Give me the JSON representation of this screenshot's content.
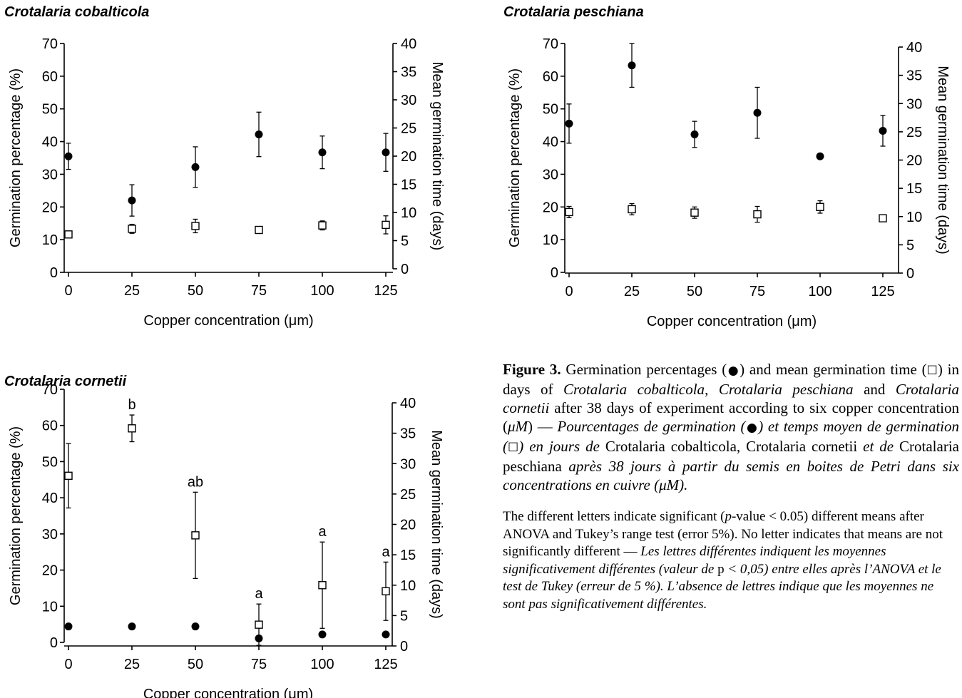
{
  "titles": {
    "cobalticola": "Crotalaria cobalticola",
    "peschiana": "Crotalaria peschiana",
    "cornetii": "Crotalaria cornetii"
  },
  "chart_data": [
    {
      "type": "scatter",
      "title": "Crotalaria cobalticola",
      "xlabel": "Copper concentration (μm)",
      "ylabel": "Germination percentage (%)",
      "y2label": "Mean germination time (days)",
      "x": [
        0,
        25,
        50,
        75,
        100,
        125
      ],
      "xlim": [
        0,
        125
      ],
      "ylim": [
        0,
        70
      ],
      "y2lim": [
        0,
        40
      ],
      "yticks": [
        0,
        10,
        20,
        30,
        40,
        50,
        60,
        70
      ],
      "y2ticks": [
        0,
        5,
        10,
        15,
        20,
        25,
        30,
        35,
        40
      ],
      "series": [
        {
          "marker": "filled-circle",
          "axis": "left",
          "values": [
            35.5,
            22,
            32.2,
            42.2,
            36.7,
            36.7
          ],
          "err": [
            4,
            4.8,
            6.2,
            6.8,
            5,
            5.8
          ]
        },
        {
          "marker": "open-square",
          "axis": "right",
          "values": [
            6.1,
            7.1,
            7.6,
            6.9,
            7.7,
            7.8
          ],
          "err": [
            0,
            0.8,
            1.2,
            0,
            0.8,
            1.6
          ]
        }
      ],
      "letters": []
    },
    {
      "type": "scatter",
      "title": "Crotalaria peschiana",
      "xlabel": "Copper concentration (μm)",
      "ylabel": "Germination percentage (%)",
      "y2label": "Mean germination time (days)",
      "x": [
        0,
        25,
        50,
        75,
        100,
        125
      ],
      "xlim": [
        0,
        125
      ],
      "ylim": [
        0,
        70
      ],
      "y2lim": [
        0,
        40
      ],
      "yticks": [
        0,
        10,
        20,
        30,
        40,
        50,
        60,
        70
      ],
      "y2ticks": [
        0,
        5,
        10,
        15,
        20,
        25,
        30,
        35,
        40
      ],
      "series": [
        {
          "marker": "filled-circle",
          "axis": "left",
          "values": [
            45.5,
            63.3,
            42.2,
            48.8,
            35.5,
            43.3
          ],
          "err": [
            6,
            6.7,
            4,
            7.8,
            0,
            4.7
          ]
        },
        {
          "marker": "open-square",
          "axis": "right",
          "values": [
            10.8,
            11.3,
            10.7,
            10.4,
            11.7,
            9.7
          ],
          "err": [
            1,
            1,
            1,
            1.4,
            1.1,
            0
          ]
        }
      ],
      "letters": []
    },
    {
      "type": "scatter",
      "title": "Crotalaria cornetii",
      "xlabel": "Copper concentration (μm)",
      "ylabel": "Germination percentage (%)",
      "y2label": "Mean germination time (days)",
      "x": [
        0,
        25,
        50,
        75,
        100,
        125
      ],
      "xlim": [
        0,
        125
      ],
      "ylim": [
        0,
        70
      ],
      "y2lim": [
        0,
        40
      ],
      "yticks": [
        0,
        10,
        20,
        30,
        40,
        50,
        60,
        70
      ],
      "y2ticks": [
        0,
        5,
        10,
        15,
        20,
        25,
        30,
        35,
        40
      ],
      "series": [
        {
          "marker": "filled-circle",
          "axis": "left",
          "values": [
            4.4,
            4.4,
            4.4,
            1.1,
            2.2,
            2.2
          ],
          "err": [
            0,
            0,
            0,
            0,
            0,
            0
          ]
        },
        {
          "marker": "open-square",
          "axis": "right",
          "values": [
            28,
            35.8,
            18.2,
            3.5,
            10,
            9
          ],
          "err": [
            5.3,
            2.2,
            7.1,
            3.4,
            7.1,
            4.8
          ]
        }
      ],
      "letters": [
        "",
        "b",
        "ab",
        "a",
        "a",
        "a"
      ]
    }
  ],
  "caption": {
    "fig_label": "Figure 3.",
    "en_1": " Germination percentages (",
    "circle_glyph": "●",
    "en_2": ") and mean germination time (",
    "square_glyph": "☐",
    "en_3": ") in days of ",
    "sp_cob": "Crotalaria cobalticola",
    "sep_1": ", ",
    "sp_pes": "Crotalaria peschiana",
    "and_word": " and ",
    "sp_cor": "Crotalaria cornetii",
    "en_4": " after 38 days of experiment according to six copper concentration (",
    "mu_unit": "μM",
    "en_5": ") — ",
    "fr_1": "Pourcentages de germination (",
    "fr_2": ") et temps moyen de germination (",
    "fr_3": ") en jours de ",
    "sep_2": ", ",
    "fr_4": " et de ",
    "fr_5": " après 38 jours à partir du semis en boites de Petri dans six concentrations en cuivre (μM).",
    "note_1": "The different letters indicate significant (",
    "note_p": "p",
    "note_2": "-value < 0.05) different means after ANOVA and Tukey’s range test (error 5%). No letter indicates that means are not significantly different — ",
    "note_fr_1": "Les lettres différentes indiquent les moyennes significativement différentes (valeur de ",
    "note_fr_p": "p",
    "note_fr_2": " < 0,05) entre elles après l’ANOVA et le test de Tukey (erreur de 5 %). L’absence de lettres indique que les moyennes ne sont pas significativement différentes."
  }
}
